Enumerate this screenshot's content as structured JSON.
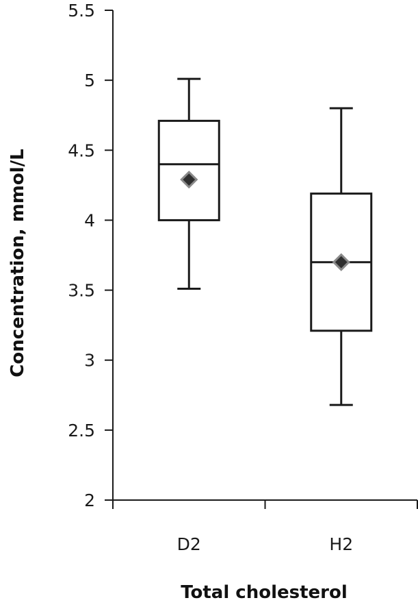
{
  "chart_data": {
    "type": "boxplot",
    "title": "",
    "xlabel": "Total cholesterol",
    "ylabel": "Concentration, mmol/L",
    "ylim": [
      2,
      5.5
    ],
    "yticks": [
      2,
      2.5,
      3,
      3.5,
      4,
      4.5,
      5,
      5.5
    ],
    "ytick_labels": [
      "2",
      "2.5",
      "3",
      "3.5",
      "4",
      "4.5",
      "5",
      "5.5"
    ],
    "categories": [
      "D2",
      "H2"
    ],
    "grid": false,
    "legend": "none",
    "boxes": [
      {
        "category": "D2",
        "min": 3.51,
        "q1": 4.0,
        "median": 4.4,
        "q3": 4.71,
        "max": 5.01,
        "mean": 4.29
      },
      {
        "category": "H2",
        "min": 2.68,
        "q1": 3.21,
        "median": 3.7,
        "q3": 4.19,
        "max": 4.8,
        "mean": 3.7
      }
    ],
    "colors": {
      "box_stroke": "#1a1a1a",
      "mean_marker_fill": "#2f2f2f",
      "mean_marker_stroke": "#8a8a8a"
    }
  }
}
